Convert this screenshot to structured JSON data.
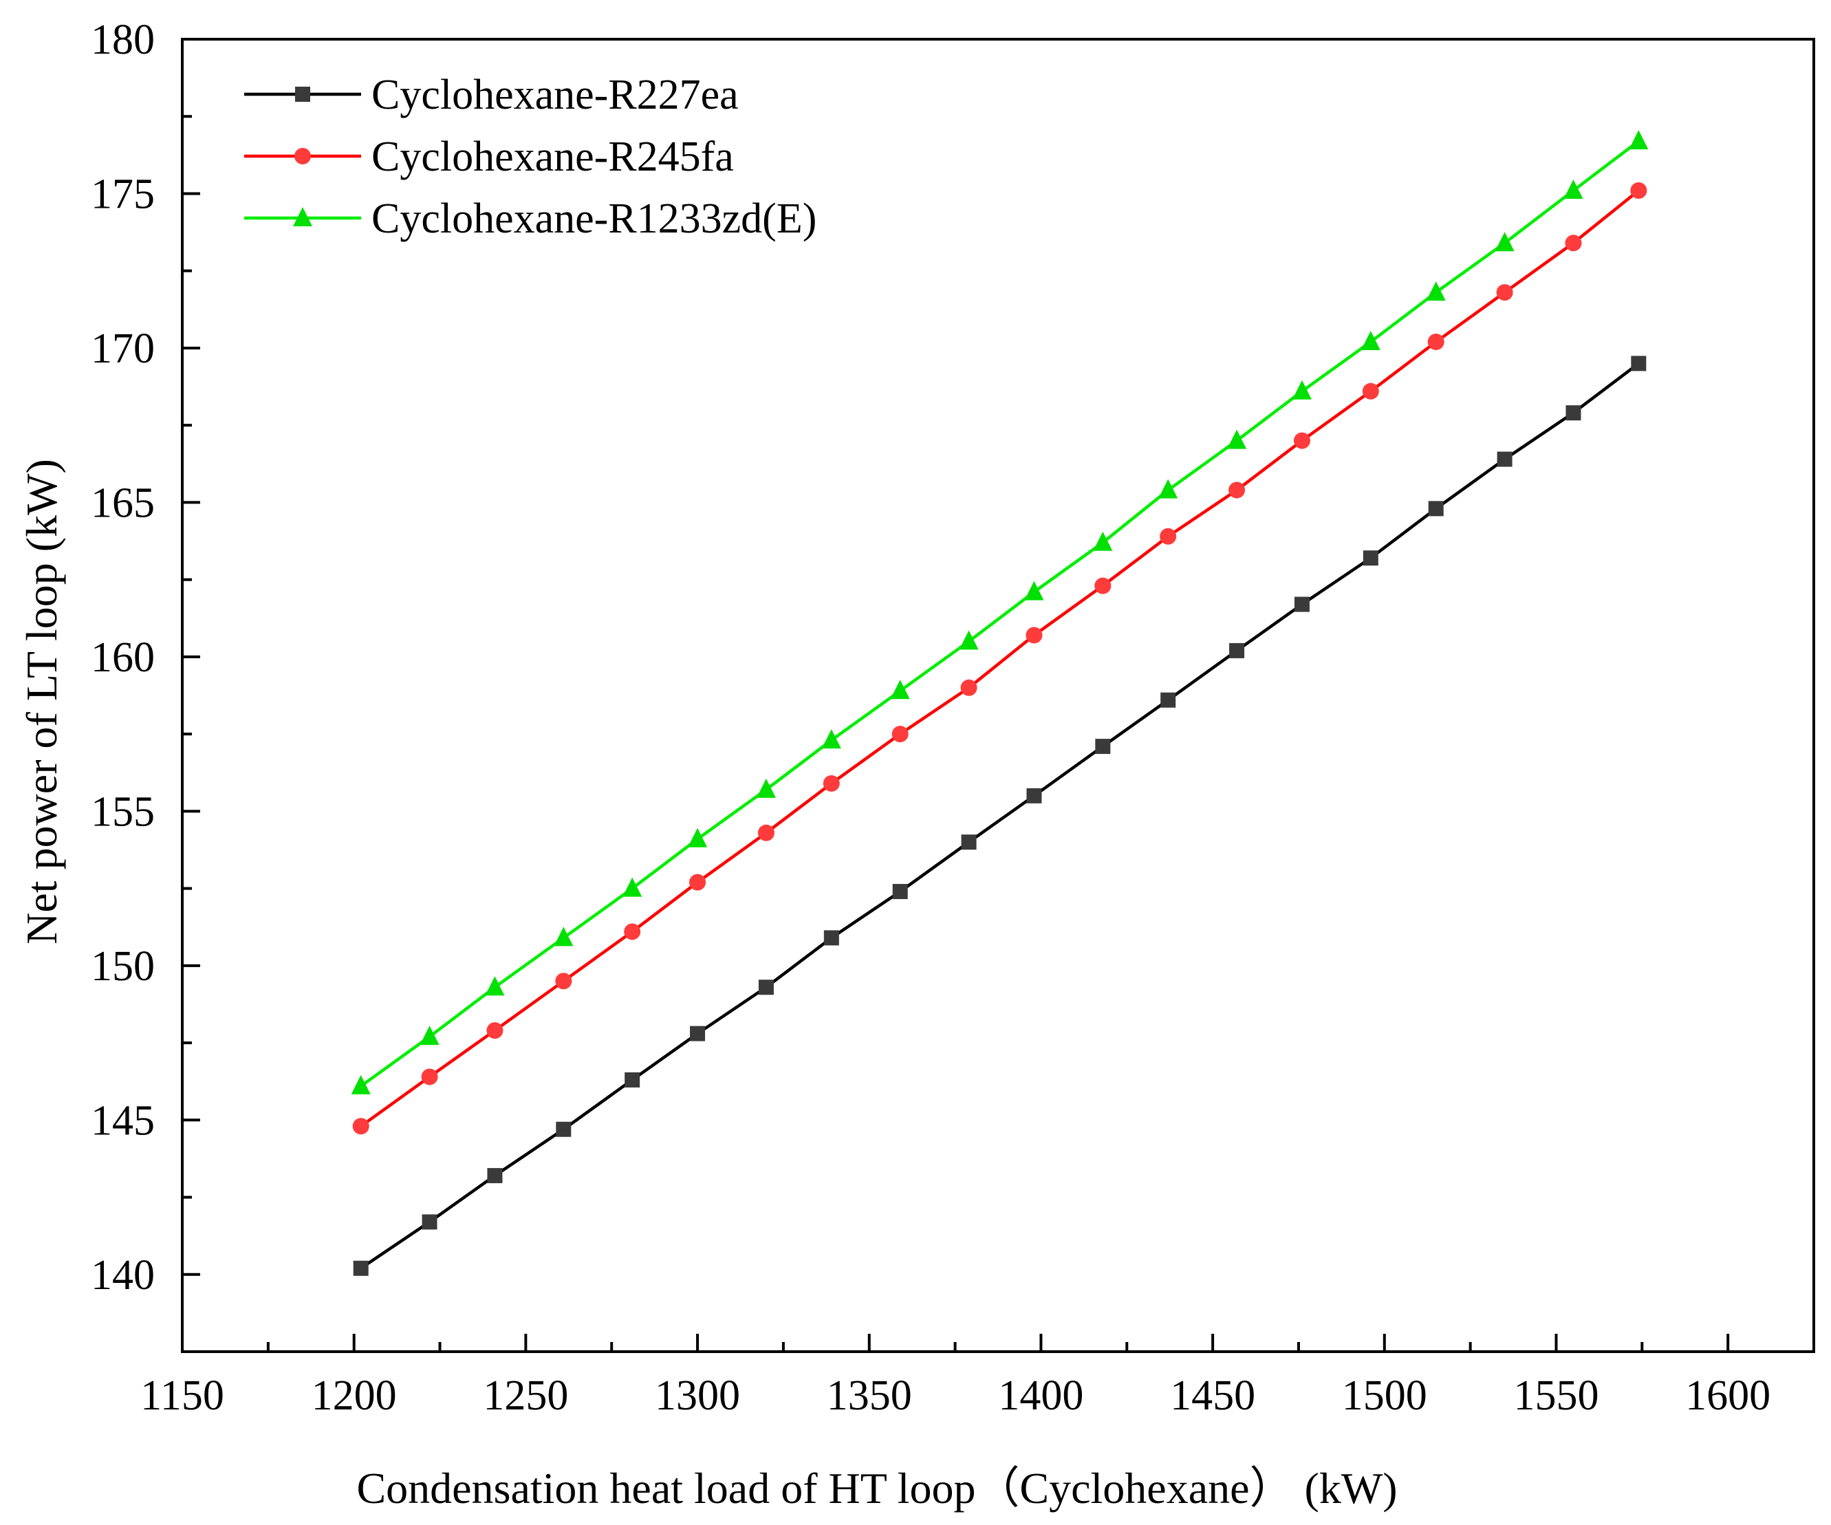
{
  "chart_data": {
    "type": "line",
    "title": "",
    "xlabel": "Condensation heat load of  HT loop（Cyclohexane） (kW)",
    "ylabel": "Net power of LT loop (kW)",
    "xlim": [
      1150,
      1625
    ],
    "ylim": [
      137.5,
      180
    ],
    "x_ticks": [
      1150,
      1200,
      1250,
      1300,
      1350,
      1400,
      1450,
      1500,
      1550,
      1600
    ],
    "x_tick_labels": [
      "1150",
      "1200",
      "1250",
      "1300",
      "1350",
      "1400",
      "1450",
      "1500",
      "1550",
      "1600"
    ],
    "y_ticks": [
      140,
      145,
      150,
      155,
      160,
      165,
      170,
      175,
      180
    ],
    "y_tick_labels": [
      "140",
      "145",
      "150",
      "155",
      "160",
      "165",
      "170",
      "175",
      "180"
    ],
    "grid": false,
    "legend_position": "top-left",
    "x": [
      1202,
      1222,
      1241,
      1261,
      1281,
      1300,
      1320,
      1339,
      1359,
      1379,
      1398,
      1418,
      1437,
      1457,
      1476,
      1496,
      1515,
      1535,
      1555,
      1574
    ],
    "series": [
      {
        "name": "Cyclohexane-R227ea",
        "color": "#000000",
        "marker": "square",
        "marker_color": "#3a3a3a",
        "values": [
          140.2,
          141.7,
          143.2,
          144.7,
          146.3,
          147.8,
          149.3,
          150.9,
          152.4,
          154.0,
          155.5,
          157.1,
          158.6,
          160.2,
          161.7,
          163.2,
          164.8,
          166.4,
          167.9,
          169.5
        ]
      },
      {
        "name": "Cyclohexane-R245fa",
        "color": "#ff0000",
        "marker": "circle",
        "marker_color": "#ff3b3b",
        "values": [
          144.8,
          146.4,
          147.9,
          149.5,
          151.1,
          152.7,
          154.3,
          155.9,
          157.5,
          159.0,
          160.7,
          162.3,
          163.9,
          165.4,
          167.0,
          168.6,
          170.2,
          171.8,
          173.4,
          175.1
        ]
      },
      {
        "name": "Cyclohexane-R1233zd(E)",
        "color": "#00ee00",
        "marker": "triangle",
        "marker_color": "#00e000",
        "values": [
          146.1,
          147.7,
          149.3,
          150.9,
          152.5,
          154.1,
          155.7,
          157.3,
          158.9,
          160.5,
          162.1,
          163.7,
          165.4,
          167.0,
          168.6,
          170.2,
          171.8,
          173.4,
          175.1,
          176.7
        ]
      }
    ]
  }
}
